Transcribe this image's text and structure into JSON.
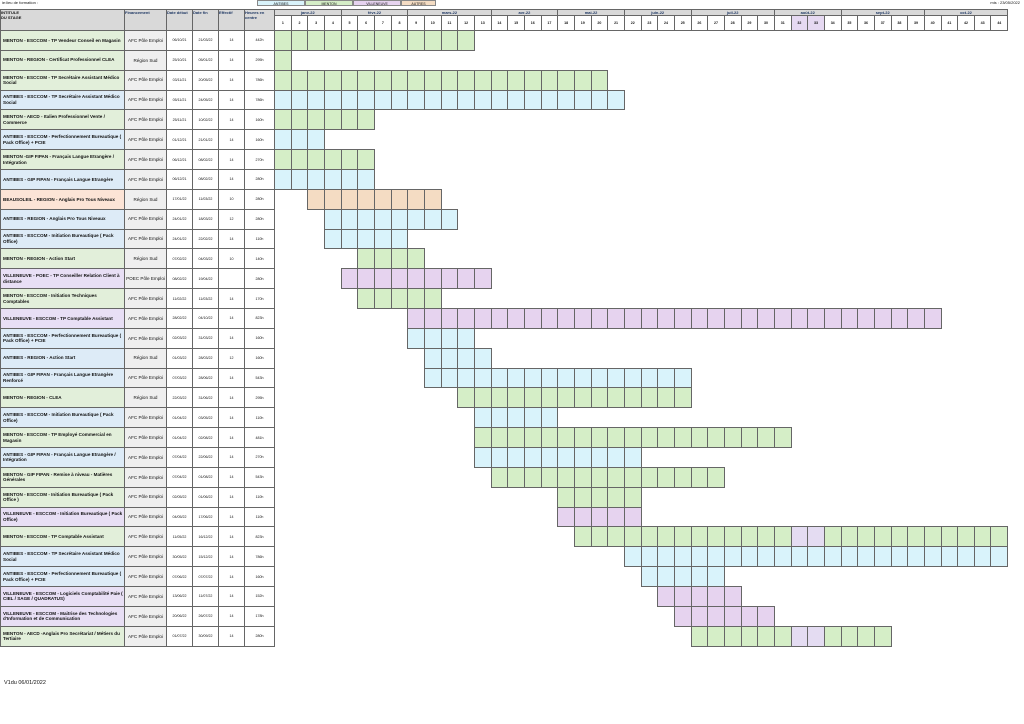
{
  "header_note_left": "ie:lieu de formation :",
  "header_note_right": "mis : 23/05/2022",
  "legend": [
    {
      "label": "ANTIBES",
      "color": "#d9f3fb"
    },
    {
      "label": "MENTON",
      "color": "#d5eec7"
    },
    {
      "label": "VILLENEUVE",
      "color": "#e6d3ef"
    },
    {
      "label": "AUTRES",
      "color": "#f4dcc3"
    }
  ],
  "columns": {
    "title": "INTITULE\nDU STAGE",
    "funding": "Financement",
    "start": "Date début",
    "end": "Date fin",
    "effectif": "Effectif",
    "hours": "Heures en centre"
  },
  "months": [
    {
      "label": "janv-22",
      "span": 4
    },
    {
      "label": "févr-22",
      "span": 4
    },
    {
      "label": "mars-22",
      "span": 5
    },
    {
      "label": "avr-22",
      "span": 4
    },
    {
      "label": "mai-22",
      "span": 4
    },
    {
      "label": "juin-22",
      "span": 4
    },
    {
      "label": "juil-22",
      "span": 5
    },
    {
      "label": "août-22",
      "span": 4
    },
    {
      "label": "sept-22",
      "span": 5
    },
    {
      "label": "oct-22",
      "span": 5
    }
  ],
  "weeks": [
    "1",
    "2",
    "3",
    "4",
    "5",
    "6",
    "7",
    "8",
    "9",
    "10",
    "11",
    "12",
    "13",
    "14",
    "15",
    "16",
    "17",
    "18",
    "19",
    "20",
    "21",
    "22",
    "23",
    "24",
    "25",
    "26",
    "27",
    "28",
    "29",
    "30",
    "31",
    "32",
    "33",
    "34",
    "35",
    "36",
    "37",
    "38",
    "39",
    "40",
    "41",
    "42",
    "43",
    "44"
  ],
  "rows": [
    {
      "title": "MENTON - ESCCOM - TP Vendeur Conseil en Magasin",
      "funding": "AFC Pôle Emploi",
      "start": "06/10/21",
      "end": "21/03/22",
      "effectif": "14",
      "hours": "442h",
      "color": "green",
      "bar_start": 1,
      "bar_end": 12,
      "gap_weeks": []
    },
    {
      "title": "MENTON - REGION - Certificat Professionnel CLEA",
      "funding": "Région Sud",
      "start": "25/10/21",
      "end": "05/01/22",
      "effectif": "14",
      "hours": "295h",
      "color": "green",
      "bar_start": 1,
      "bar_end": 1,
      "gap_weeks": []
    },
    {
      "title": "MENTON - ESCCOM - TP Secrétaire Assistant Médico Social",
      "funding": "AFC Pôle Emploi",
      "start": "03/11/21",
      "end": "20/05/22",
      "effectif": "14",
      "hours": "786h",
      "color": "green",
      "bar_start": 1,
      "bar_end": 20,
      "gap_weeks": []
    },
    {
      "title": "ANTIBES - ESCCOM - TP Secrétaire Assistant Médico Social",
      "funding": "AFC Pôle Emploi",
      "start": "05/11/21",
      "end": "24/05/22",
      "effectif": "14",
      "hours": "786h",
      "color": "blue",
      "bar_start": 1,
      "bar_end": 21,
      "gap_weeks": []
    },
    {
      "title": "MENTON - AECD - Italien Professionnel Vente / Commerce",
      "funding": "AFC Pôle Emploi",
      "start": "25/11/21",
      "end": "10/02/22",
      "effectif": "14",
      "hours": "160h",
      "color": "green",
      "bar_start": 1,
      "bar_end": 6,
      "gap_weeks": []
    },
    {
      "title": "ANTIBES - ESCCOM - Perfectionnement Bureautique ( Pack Office) + PCIE",
      "funding": "AFC Pôle Emploi",
      "start": "01/12/21",
      "end": "21/01/22",
      "effectif": "14",
      "hours": "160h",
      "color": "blue",
      "bar_start": 1,
      "bar_end": 3,
      "gap_weeks": []
    },
    {
      "title": "MENTON -GIP FIPAN - Français Langue Etrangère / Intégration",
      "funding": "AFC Pôle Emploi",
      "start": "06/12/21",
      "end": "08/02/22",
      "effectif": "14",
      "hours": "270h",
      "color": "green",
      "bar_start": 1,
      "bar_end": 6,
      "gap_weeks": []
    },
    {
      "title": "ANTIBES - GIP FIPAN - Français Langue Etrangère",
      "funding": "AFC Pôle Emploi",
      "start": "06/12/21",
      "end": "08/02/22",
      "effectif": "14",
      "hours": "280h",
      "color": "blue",
      "bar_start": 1,
      "bar_end": 6,
      "gap_weeks": []
    },
    {
      "title": "BEAUSOLEIL - REGION - Anglais Pro Tous Niveaux",
      "funding": "Région Sud",
      "start": "17/01/22",
      "end": "11/03/22",
      "effectif": "10",
      "hours": "280h",
      "color": "peach",
      "bar_start": 3,
      "bar_end": 10,
      "gap_weeks": []
    },
    {
      "title": "ANTIBES - REGION - Anglais Pro Tous Niveaux",
      "funding": "AFC Pôle Emploi",
      "start": "24/01/22",
      "end": "18/03/22",
      "effectif": "12",
      "hours": "280h",
      "color": "blue",
      "bar_start": 4,
      "bar_end": 11,
      "gap_weeks": []
    },
    {
      "title": "ANTIBES - ESCCOM - Initiation Bureautique ( Pack Office)",
      "funding": "AFC Pôle Emploi",
      "start": "24/01/22",
      "end": "22/02/22",
      "effectif": "14",
      "hours": "110h",
      "color": "blue",
      "bar_start": 4,
      "bar_end": 8,
      "gap_weeks": []
    },
    {
      "title": "MENTON - REGION - Action Start",
      "funding": "Région Sud",
      "start": "07/02/22",
      "end": "04/03/22",
      "effectif": "10",
      "hours": "140h",
      "color": "green",
      "bar_start": 6,
      "bar_end": 9,
      "gap_weeks": []
    },
    {
      "title": "VILLENEUVE - POEC - TP Conseiller Relation Client à distance",
      "funding": "POEC Pôle Emploi",
      "start": "08/02/22",
      "end": "19/04/22",
      "effectif": "",
      "hours": "280h",
      "color": "purple",
      "bar_start": 5,
      "bar_end": 13,
      "gap_weeks": []
    },
    {
      "title": "MENTON - ESCCOM - Initiation Techniques Comptables",
      "funding": "AFC Pôle Emploi",
      "start": "11/02/22",
      "end": "11/03/22",
      "effectif": "14",
      "hours": "170h",
      "color": "green",
      "bar_start": 6,
      "bar_end": 10,
      "gap_weeks": []
    },
    {
      "title": "VILLENEUVE - ESCCOM - TP Comptable Assistant",
      "funding": "AFC Pôle Emploi",
      "start": "28/02/22",
      "end": "04/10/22",
      "effectif": "14",
      "hours": "823h",
      "color": "purple",
      "bar_start": 9,
      "bar_end": 40,
      "gap_weeks": []
    },
    {
      "title": "ANTIBES - ESCCOM - Perfectionnement Bureautique ( Pack Office) + PCIE",
      "funding": "AFC Pôle Emploi",
      "start": "02/03/22",
      "end": "31/03/22",
      "effectif": "14",
      "hours": "160h",
      "color": "blue",
      "bar_start": 9,
      "bar_end": 12,
      "gap_weeks": []
    },
    {
      "title": "ANTIBES - REGION - Action Start",
      "funding": "Région Sud",
      "start": "01/03/22",
      "end": "28/03/22",
      "effectif": "12",
      "hours": "160h",
      "color": "blue",
      "bar_start": 10,
      "bar_end": 13,
      "gap_weeks": []
    },
    {
      "title": "ANTIBES - GIP FIPAN - Français Langue Etrangère Renforcé",
      "funding": "AFC Pôle Emploi",
      "start": "07/03/22",
      "end": "28/06/22",
      "effectif": "14",
      "hours": "543h",
      "color": "blue",
      "bar_start": 10,
      "bar_end": 25,
      "gap_weeks": []
    },
    {
      "title": "MENTON - REGION - CLEA",
      "funding": "Région Sud",
      "start": "22/03/22",
      "end": "31/06/22",
      "effectif": "14",
      "hours": "295h",
      "color": "green",
      "bar_start": 12,
      "bar_end": 25,
      "gap_weeks": []
    },
    {
      "title": "ANTIBES - ESCCOM - Initiation Bureautique ( Pack Office)",
      "funding": "AFC Pôle Emploi",
      "start": "01/04/22",
      "end": "03/05/22",
      "effectif": "14",
      "hours": "110h",
      "color": "blue",
      "bar_start": 13,
      "bar_end": 17,
      "gap_weeks": []
    },
    {
      "title": "MENTON - ESCCOM - TP Employé Commercial en Magasin",
      "funding": "AFC Pôle Emploi",
      "start": "01/04/22",
      "end": "02/08/22",
      "effectif": "14",
      "hours": "481h",
      "color": "green",
      "bar_start": 13,
      "bar_end": 31,
      "gap_weeks": []
    },
    {
      "title": "ANTIBES - GIP FIPAN - Français Langue Etrangère / Intégration",
      "funding": "AFC Pôle Emploi",
      "start": "07/04/22",
      "end": "22/06/22",
      "effectif": "14",
      "hours": "270h",
      "color": "blue",
      "bar_start": 13,
      "bar_end": 22,
      "gap_weeks": []
    },
    {
      "title": "MENTON - GIP FIPAN - Remise à niveau - Matières Générales",
      "funding": "AFC Pôle Emploi",
      "start": "07/04/22",
      "end": "01/08/22",
      "effectif": "14",
      "hours": "543h",
      "color": "green",
      "bar_start": 14,
      "bar_end": 27,
      "gap_weeks": []
    },
    {
      "title": "MENTON - ESCCOM - Initiation Bureautique ( Pack Office )",
      "funding": "AFC Pôle Emploi",
      "start": "02/05/22",
      "end": "01/06/22",
      "effectif": "14",
      "hours": "110h",
      "color": "green",
      "bar_start": 18,
      "bar_end": 22,
      "gap_weeks": []
    },
    {
      "title": "VILLENEUVE - ESCCOM - Initiation Bureautique ( Pack Office)",
      "funding": "AFC Pôle Emploi",
      "start": "04/05/22",
      "end": "17/06/22",
      "effectif": "14",
      "hours": "110h",
      "color": "purple",
      "bar_start": 18,
      "bar_end": 22,
      "gap_weeks": []
    },
    {
      "title": "MENTON - ESCCOM - TP Comptable Assistant",
      "funding": "AFC Pôle Emploi",
      "start": "11/05/22",
      "end": "16/12/22",
      "effectif": "14",
      "hours": "823h",
      "color": "green",
      "bar_start": 19,
      "bar_end": 44,
      "gap_weeks": [
        32,
        33
      ]
    },
    {
      "title": "ANTIBES - ESCCOM - TP Secrétaire Assistant Médico Social",
      "funding": "AFC Pôle Emploi",
      "start": "30/05/22",
      "end": "15/12/22",
      "effectif": "14",
      "hours": "786h",
      "color": "blue",
      "bar_start": 22,
      "bar_end": 44,
      "gap_weeks": []
    },
    {
      "title": "ANTIBES - ESCCOM - Perfectionnement Bureautique ( Pack Office) + PCIE",
      "funding": "AFC Pôle Emploi",
      "start": "07/06/22",
      "end": "07/07/22",
      "effectif": "14",
      "hours": "160h",
      "color": "blue",
      "bar_start": 23,
      "bar_end": 27,
      "gap_weeks": []
    },
    {
      "title": "VILLENEUVE - ESCCOM - Logiciels Comptabilité Paie ( CIEL / SAGE / QUADRATUS)",
      "funding": "AFC Pôle Emploi",
      "start": "13/06/22",
      "end": "11/07/22",
      "effectif": "14",
      "hours": "152h",
      "color": "purple",
      "bar_start": 24,
      "bar_end": 28,
      "gap_weeks": []
    },
    {
      "title": "VILLENEUVE - ESCCOM - Maitrise des Technologies d'Information et de Communication",
      "funding": "AFC Pôle Emploi",
      "start": "20/06/22",
      "end": "26/07/22",
      "effectif": "14",
      "hours": "178h",
      "color": "purple",
      "bar_start": 25,
      "bar_end": 30,
      "gap_weeks": []
    },
    {
      "title": "MENTON - AECD -Anglais Pro Secrétariat / Métiers du Tertiaire",
      "funding": "AFC Pôle Emploi",
      "start": "01/07/22",
      "end": "30/09/22",
      "effectif": "14",
      "hours": "280h",
      "color": "green",
      "bar_start": 26,
      "bar_end": 37,
      "gap_weeks": [
        32,
        33
      ]
    }
  ],
  "footer": "V1du 06/01/2022"
}
